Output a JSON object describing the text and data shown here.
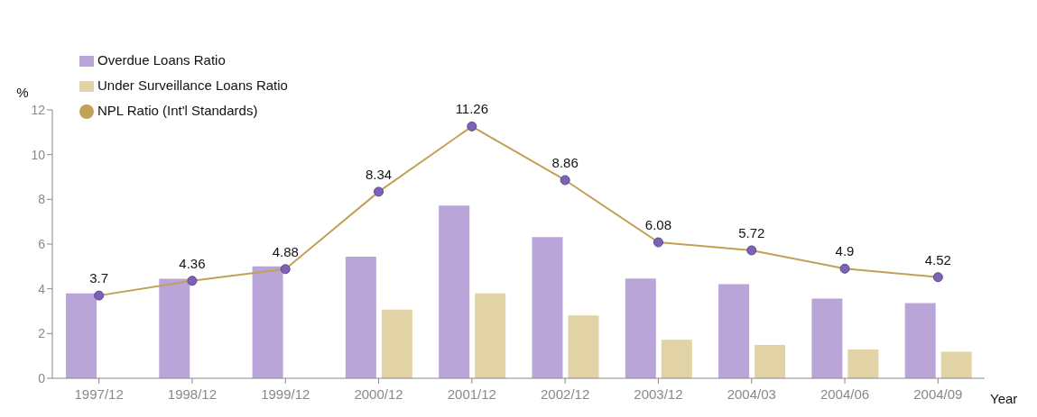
{
  "chart_data": {
    "type": "bar",
    "ylabel": "%",
    "xlabel": "Year",
    "categories": [
      "1997/12",
      "1998/12",
      "1999/12",
      "2000/12",
      "2001/12",
      "2002/12",
      "2003/12",
      "2004/03",
      "2004/06",
      "2004/09"
    ],
    "series": [
      {
        "name": "Overdue Loans Ratio",
        "color": "#b9a5d8",
        "values": [
          3.8,
          4.45,
          5.0,
          5.44,
          7.72,
          6.31,
          4.46,
          4.21,
          3.56,
          3.36
        ]
      },
      {
        "name": "Under Surveillance Loans Ratio",
        "color": "#e2d3a6",
        "values": [
          null,
          null,
          null,
          3.07,
          3.8,
          2.81,
          1.72,
          1.49,
          1.29,
          1.19
        ]
      },
      {
        "name": "NPL Ratio (Int'l Standards)",
        "type": "line",
        "color": "#c0a155",
        "values": [
          3.7,
          4.36,
          4.88,
          8.34,
          11.26,
          8.86,
          6.08,
          5.72,
          4.9,
          4.52
        ],
        "value_labels": [
          "3.7",
          "4.36",
          "4.88",
          "8.34",
          "11.26",
          "8.86",
          "6.08",
          "5.72",
          "4.9",
          "4.52"
        ]
      }
    ],
    "ylim": [
      0,
      12
    ],
    "yticks": [
      0,
      2,
      4,
      6,
      8,
      10,
      12
    ],
    "grid": false,
    "legend": "top left",
    "marker": "circle",
    "line_style": "solid"
  }
}
